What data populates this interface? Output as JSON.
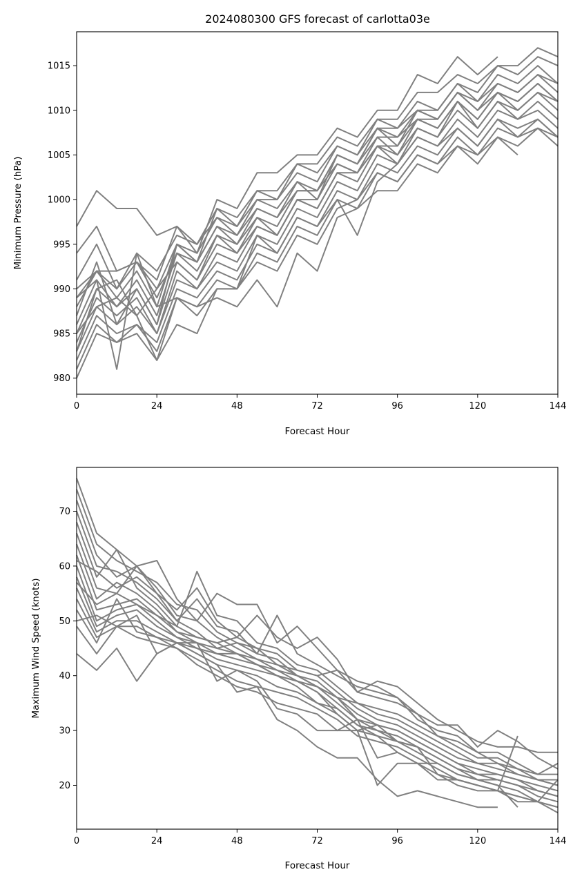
{
  "title": "2024080300 GFS forecast of carlotta03e",
  "chart_data": [
    {
      "type": "line",
      "xlabel": "Forecast Hour",
      "ylabel": "Minimum Pressure (hPa)",
      "xlim": [
        0,
        144
      ],
      "ylim": [
        978.2,
        1018.8
      ],
      "xticks": [
        0,
        24,
        48,
        72,
        96,
        120,
        144
      ],
      "yticks": [
        980,
        985,
        990,
        995,
        1000,
        1005,
        1010,
        1015
      ],
      "grid": false,
      "line_color": "#808080",
      "x": [
        0,
        6,
        12,
        18,
        24,
        30,
        36,
        42,
        48,
        54,
        60,
        66,
        72,
        78,
        84,
        90,
        96,
        102,
        108,
        114,
        120,
        126,
        132,
        138,
        144
      ],
      "series": [
        {
          "values": [
            997,
            1001,
            999,
            999,
            996,
            997,
            994,
            1000,
            999,
            1003,
            1003,
            1005,
            1005,
            1008,
            1007,
            1010,
            1010,
            1014,
            1013,
            1016,
            1014,
            1016,
            null,
            null,
            null
          ]
        },
        {
          "values": [
            994,
            997,
            992,
            993,
            991,
            997,
            995,
            999,
            998,
            1001,
            1001,
            1004,
            1004,
            1007,
            1006,
            1009,
            1009,
            1012,
            1012,
            1014,
            1013,
            1015,
            1015,
            1017,
            1016
          ]
        },
        {
          "values": [
            991,
            995,
            990,
            994,
            992,
            996,
            995,
            998,
            997,
            1001,
            1000,
            1004,
            1003,
            1006,
            1005,
            1009,
            1008,
            1011,
            1010,
            1013,
            1012,
            1015,
            1014,
            1016,
            1015
          ]
        },
        {
          "values": [
            989,
            992,
            992,
            993,
            990,
            995,
            994,
            998,
            996,
            1000,
            1000,
            1003,
            1002,
            1006,
            1005,
            1008,
            1008,
            1010,
            1010,
            1013,
            1011,
            1014,
            1013,
            1015,
            1013
          ]
        },
        {
          "values": [
            988,
            992,
            989,
            992,
            988,
            995,
            993,
            997,
            995,
            999,
            998,
            1002,
            1001,
            1005,
            1004,
            1008,
            1006,
            1010,
            1009,
            1012,
            1010,
            1013,
            1012,
            1014,
            1012
          ]
        },
        {
          "values": [
            986,
            991,
            988,
            991,
            987,
            994,
            992,
            996,
            995,
            998,
            997,
            1001,
            1001,
            1004,
            1003,
            1007,
            1005,
            1009,
            1008,
            1011,
            1009,
            1012,
            1011,
            1013,
            1011
          ]
        },
        {
          "values": [
            985,
            990,
            988,
            990,
            986,
            993,
            991,
            995,
            994,
            998,
            996,
            1000,
            1000,
            1004,
            1003,
            1006,
            1005,
            1008,
            1007,
            1011,
            1008,
            1011,
            1010,
            1012,
            1010
          ]
        },
        {
          "values": [
            984,
            989,
            987,
            989,
            985,
            992,
            990,
            994,
            993,
            997,
            996,
            1000,
            999,
            1003,
            1002,
            1006,
            1004,
            1008,
            1007,
            1010,
            1008,
            1011,
            1009,
            1011,
            1009
          ]
        },
        {
          "values": [
            983,
            988,
            986,
            988,
            985,
            991,
            990,
            993,
            992,
            996,
            995,
            999,
            998,
            1002,
            1001,
            1005,
            1004,
            1007,
            1006,
            1009,
            1007,
            1010,
            1009,
            1010,
            1008
          ]
        },
        {
          "values": [
            982,
            987,
            985,
            986,
            984,
            990,
            989,
            992,
            991,
            995,
            994,
            998,
            997,
            1001,
            1000,
            1004,
            1003,
            1006,
            1005,
            1008,
            1006,
            1009,
            1008,
            1009,
            1007
          ]
        },
        {
          "values": [
            981,
            986,
            984,
            986,
            983,
            989,
            988,
            991,
            990,
            994,
            993,
            997,
            996,
            1000,
            999,
            1003,
            1002,
            1005,
            1004,
            1007,
            1005,
            1008,
            1007,
            1008,
            1006
          ]
        },
        {
          "values": [
            980,
            985,
            984,
            985,
            982,
            989,
            987,
            990,
            990,
            993,
            992,
            996,
            995,
            999,
            1000,
            1003,
            1002,
            1005,
            1004,
            1006,
            1005,
            1007,
            1005,
            null,
            null
          ]
        },
        {
          "values": [
            989,
            991,
            981,
            994,
            988,
            989,
            988,
            989,
            988,
            991,
            988,
            994,
            992,
            998,
            999,
            1001,
            1001,
            1004,
            1003,
            1006,
            1004,
            1007,
            1006,
            1008,
            1007
          ]
        },
        {
          "values": [
            983,
            990,
            991,
            987,
            982,
            986,
            985,
            990,
            990,
            996,
            994,
            998,
            997,
            1000,
            996,
            1002,
            1004,
            1007,
            1006,
            1008,
            1006,
            1009,
            1007,
            1009,
            1007
          ]
        },
        {
          "values": [
            987,
            993,
            986,
            990,
            986,
            995,
            993,
            999,
            997,
            1000,
            999,
            1002,
            1000,
            1005,
            1004,
            1008,
            1007,
            1009,
            1009,
            1012,
            1010,
            1012,
            1011,
            1013,
            1011
          ]
        },
        {
          "values": [
            990,
            992,
            990,
            993,
            989,
            994,
            993,
            997,
            996,
            999,
            998,
            1001,
            1001,
            1005,
            1004,
            1007,
            1007,
            1010,
            1009,
            1012,
            1011,
            1013,
            1012,
            1014,
            1013
          ]
        },
        {
          "values": [
            985,
            988,
            989,
            987,
            990,
            993,
            991,
            996,
            994,
            997,
            996,
            1000,
            999,
            1003,
            1003,
            1006,
            1006,
            1009,
            1008,
            1011,
            1009,
            1012,
            1010,
            1012,
            1011
          ]
        }
      ]
    },
    {
      "type": "line",
      "xlabel": "Forecast Hour",
      "ylabel": "Maximum Wind Speed (knots)",
      "xlim": [
        0,
        144
      ],
      "ylim": [
        12,
        78
      ],
      "xticks": [
        0,
        24,
        48,
        72,
        96,
        120,
        144
      ],
      "yticks": [
        20,
        30,
        40,
        50,
        60,
        70
      ],
      "grid": false,
      "line_color": "#808080",
      "x": [
        0,
        6,
        12,
        18,
        24,
        30,
        36,
        42,
        48,
        54,
        60,
        66,
        72,
        78,
        84,
        90,
        96,
        102,
        108,
        114,
        120,
        126,
        132,
        138,
        144
      ],
      "series": [
        {
          "values": [
            76,
            66,
            63,
            60,
            56,
            51,
            50,
            47,
            45,
            43,
            41,
            39,
            38,
            35,
            32,
            30,
            29,
            27,
            25,
            23,
            22,
            21,
            20,
            19,
            18
          ]
        },
        {
          "values": [
            74,
            64,
            61,
            59,
            57,
            53,
            52,
            48,
            46,
            45,
            42,
            40,
            38,
            36,
            33,
            31,
            30,
            28,
            26,
            24,
            23,
            22,
            21,
            20,
            19
          ]
        },
        {
          "values": [
            72,
            62,
            58,
            60,
            55,
            52,
            56,
            50,
            47,
            45,
            44,
            41,
            40,
            37,
            34,
            32,
            31,
            29,
            27,
            25,
            24,
            23,
            22,
            21,
            20
          ]
        },
        {
          "values": [
            70,
            60,
            59,
            57,
            54,
            50,
            54,
            49,
            48,
            44,
            43,
            40,
            39,
            36,
            35,
            33,
            32,
            30,
            28,
            26,
            24,
            24,
            22,
            21,
            21
          ]
        },
        {
          "values": [
            68,
            58,
            63,
            56,
            53,
            49,
            59,
            51,
            50,
            46,
            45,
            42,
            41,
            38,
            35,
            34,
            33,
            31,
            29,
            27,
            25,
            25,
            23,
            22,
            22
          ]
        },
        {
          "values": [
            66,
            56,
            55,
            60,
            61,
            54,
            50,
            55,
            53,
            53,
            46,
            49,
            45,
            41,
            37,
            39,
            38,
            35,
            32,
            30,
            28,
            27,
            27,
            26,
            26
          ]
        },
        {
          "values": [
            64,
            54,
            57,
            55,
            52,
            48,
            47,
            46,
            47,
            51,
            47,
            45,
            47,
            43,
            37,
            36,
            35,
            33,
            31,
            31,
            27,
            30,
            28,
            25,
            23
          ]
        },
        {
          "values": [
            62,
            52,
            53,
            54,
            51,
            48,
            46,
            45,
            46,
            44,
            51,
            44,
            42,
            40,
            38,
            37,
            36,
            32,
            30,
            29,
            26,
            26,
            24,
            22,
            24
          ]
        },
        {
          "values": [
            60,
            50,
            52,
            53,
            50,
            47,
            46,
            44,
            44,
            43,
            42,
            41,
            40,
            41,
            39,
            38,
            36,
            33,
            29,
            28,
            26,
            24,
            23,
            21,
            20
          ]
        },
        {
          "values": [
            58,
            49,
            51,
            52,
            49,
            47,
            45,
            44,
            43,
            42,
            41,
            40,
            38,
            36,
            32,
            31,
            30,
            28,
            26,
            24,
            22,
            22,
            21,
            19,
            18
          ]
        },
        {
          "values": [
            56,
            48,
            50,
            50,
            48,
            46,
            45,
            43,
            42,
            41,
            40,
            39,
            37,
            34,
            31,
            30,
            28,
            27,
            25,
            23,
            21,
            21,
            20,
            18,
            17
          ]
        },
        {
          "values": [
            54,
            47,
            49,
            49,
            47,
            46,
            44,
            42,
            41,
            40,
            38,
            37,
            35,
            33,
            30,
            29,
            28,
            26,
            24,
            22,
            21,
            20,
            19,
            17,
            16
          ]
        },
        {
          "values": [
            52,
            46,
            54,
            48,
            47,
            45,
            43,
            41,
            39,
            38,
            37,
            36,
            34,
            32,
            29,
            28,
            27,
            25,
            23,
            21,
            20,
            19,
            18,
            17,
            15
          ]
        },
        {
          "values": [
            50,
            51,
            49,
            47,
            46,
            45,
            42,
            40,
            38,
            37,
            35,
            34,
            33,
            30,
            30,
            20,
            24,
            24,
            22,
            21,
            20,
            19,
            18,
            17,
            16
          ]
        },
        {
          "values": [
            49,
            44,
            49,
            51,
            44,
            46,
            46,
            39,
            41,
            39,
            34,
            33,
            30,
            30,
            32,
            25,
            26,
            24,
            21,
            21,
            20,
            19,
            17,
            17,
            21
          ]
        },
        {
          "values": [
            44,
            41,
            45,
            39,
            44,
            46,
            44,
            42,
            37,
            38,
            32,
            30,
            27,
            25,
            25,
            21,
            18,
            19,
            18,
            17,
            16,
            16,
            null,
            null,
            null
          ]
        },
        {
          "values": [
            61,
            59,
            56,
            58,
            55,
            50,
            48,
            45,
            44,
            42,
            40,
            38,
            35,
            34,
            31,
            29,
            26,
            24,
            24,
            22,
            21,
            20,
            16,
            null,
            null
          ]
        },
        {
          "values": [
            57,
            53,
            55,
            53,
            51,
            49,
            47,
            46,
            44,
            42,
            40,
            39,
            37,
            33,
            30,
            31,
            28,
            27,
            22,
            20,
            19,
            19,
            29,
            null,
            null
          ]
        }
      ]
    }
  ]
}
